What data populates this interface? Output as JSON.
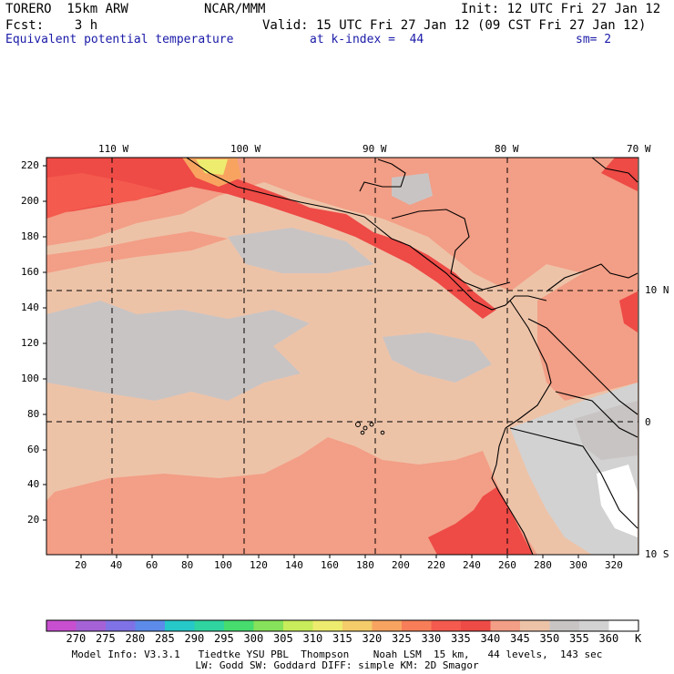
{
  "header": {
    "model": "TORERO  15km ARW",
    "center": "NCAR/MMM",
    "init": "Init: 12 UTC Fri 27 Jan 12",
    "fcst": "Fcst:    3 h",
    "valid": "Valid: 15 UTC Fri 27 Jan 12 (09 CST Fri 27 Jan 12)",
    "field": "Equivalent potential temperature",
    "level": "at k-index =  44",
    "smooth": "sm= 2"
  },
  "map": {
    "lon_labels": [
      "110 W",
      "100 W",
      "90 W",
      "80 W",
      "70 W"
    ],
    "lat_labels": [
      "10 N",
      "0",
      "10 S"
    ],
    "x_ticks": [
      "20",
      "40",
      "60",
      "80",
      "100",
      "120",
      "140",
      "160",
      "180",
      "200",
      "220",
      "240",
      "260",
      "280",
      "300",
      "320"
    ],
    "y_ticks": [
      "20",
      "40",
      "60",
      "80",
      "100",
      "120",
      "140",
      "160",
      "180",
      "200",
      "220"
    ]
  },
  "colorbar": {
    "unit": "K",
    "levels": [
      "270",
      "275",
      "280",
      "285",
      "290",
      "295",
      "300",
      "305",
      "310",
      "315",
      "320",
      "325",
      "330",
      "335",
      "340",
      "345",
      "350",
      "355",
      "360"
    ],
    "colors": [
      "#c84fd0",
      "#a562d6",
      "#7f72e6",
      "#5c8bea",
      "#27c8c8",
      "#2fd4a0",
      "#46dc6e",
      "#86e25a",
      "#c8ec5a",
      "#eeec6e",
      "#f4cc6a",
      "#f8a460",
      "#f77e58",
      "#f45a4e",
      "#ee4a46",
      "#f39e86",
      "#edc3a8",
      "#c9c4c4",
      "#d2d2d2",
      "#ffffff"
    ]
  },
  "footer": {
    "line1": "Model Info: V3.3.1   Tiedtke YSU PBL  Thompson    Noah LSM  15 km,   44 levels,  143 sec",
    "line2": "LW: Godd SW: Goddard DIFF: simple KM: 2D Smagor"
  }
}
